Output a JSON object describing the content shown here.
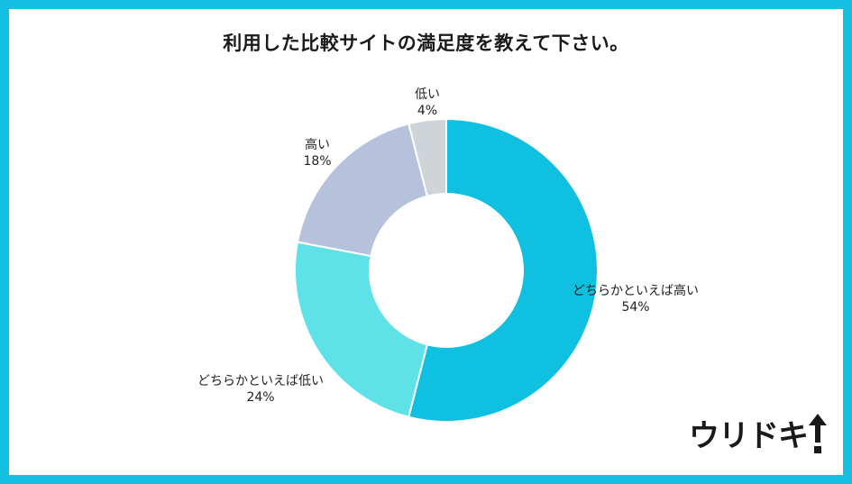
{
  "title": "利用した比較サイトの満足度を教えて下さい。",
  "chart_data": {
    "type": "pie",
    "donut": true,
    "slices": [
      {
        "label": "どちらかといえば高い",
        "value": 54,
        "pct_text": "54%",
        "color": "#10c0e0"
      },
      {
        "label": "どちらかといえば低い",
        "value": 24,
        "pct_text": "24%",
        "color": "#5ee2e8"
      },
      {
        "label": "高い",
        "value": 18,
        "pct_text": "18%",
        "color": "#b6c2dc"
      },
      {
        "label": "低い",
        "value": 4,
        "pct_text": "4%",
        "color": "#cfd4d8"
      }
    ]
  },
  "logo": {
    "text": "ウリドキ",
    "icon": "up-arrow-icon"
  }
}
